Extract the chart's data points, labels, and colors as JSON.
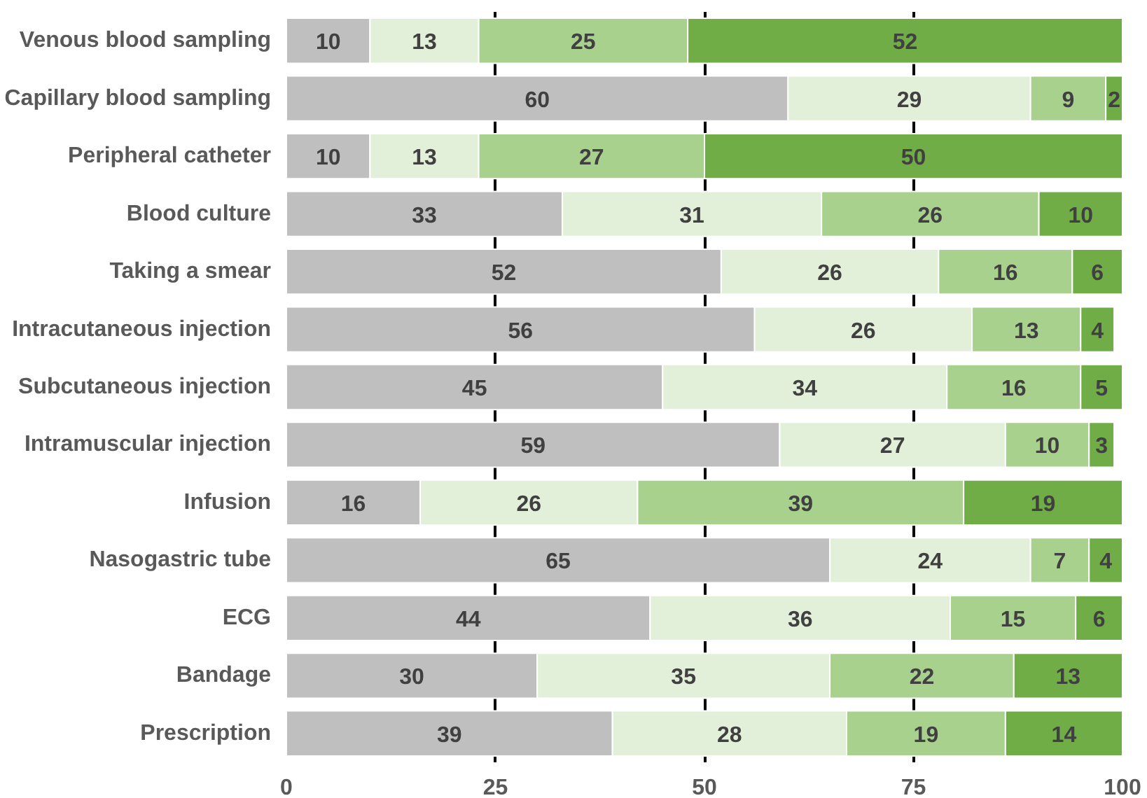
{
  "chart_data": {
    "type": "bar",
    "orientation": "horizontal",
    "stacked": true,
    "grid": "x",
    "legend": false,
    "categories": [
      "Venous blood sampling",
      "Capillary blood sampling",
      "Peripheral catheter",
      "Blood culture",
      "Taking a smear",
      "Intracutaneous injection",
      "Subcutaneous injection",
      "Intramuscular injection",
      "Infusion",
      "Nasogastric tube",
      "ECG",
      "Bandage",
      "Prescription"
    ],
    "xlim": [
      0,
      100
    ],
    "xticks": [
      0,
      25,
      50,
      75,
      100
    ],
    "series": [
      {
        "color": "#bfbfbf",
        "values": [
          10,
          60,
          10,
          33,
          52,
          56,
          45,
          59,
          16,
          65,
          43.5,
          30,
          39
        ],
        "value_labels": [
          "10",
          "60",
          "10",
          "33",
          "52",
          "56",
          "45",
          "59",
          "16",
          "65",
          "44",
          "30",
          "39"
        ]
      },
      {
        "color": "#e2f0d9",
        "values": [
          13,
          29,
          13,
          31,
          26,
          26,
          34,
          27,
          26,
          24,
          35.9,
          35,
          28
        ],
        "value_labels": [
          "13",
          "29",
          "13",
          "31",
          "26",
          "26",
          "34",
          "27",
          "26",
          "24",
          "36",
          "35",
          "28"
        ]
      },
      {
        "color": "#a9d18e",
        "values": [
          25,
          9,
          27,
          26,
          16,
          13,
          16,
          10,
          39,
          7,
          15,
          22,
          19
        ],
        "value_labels": [
          "25",
          "9",
          "27",
          "26",
          "16",
          "13",
          "16",
          "10",
          "39",
          "7",
          "15",
          "22",
          "19"
        ]
      },
      {
        "color": "#70ad47",
        "values": [
          52,
          2,
          50,
          10,
          6,
          4,
          5,
          3,
          19,
          4,
          5.6,
          13,
          14
        ],
        "value_labels": [
          "52",
          "2",
          "50",
          "10",
          "6",
          "4",
          "5",
          "3",
          "19",
          "4",
          "6",
          "13",
          "14"
        ]
      }
    ]
  }
}
